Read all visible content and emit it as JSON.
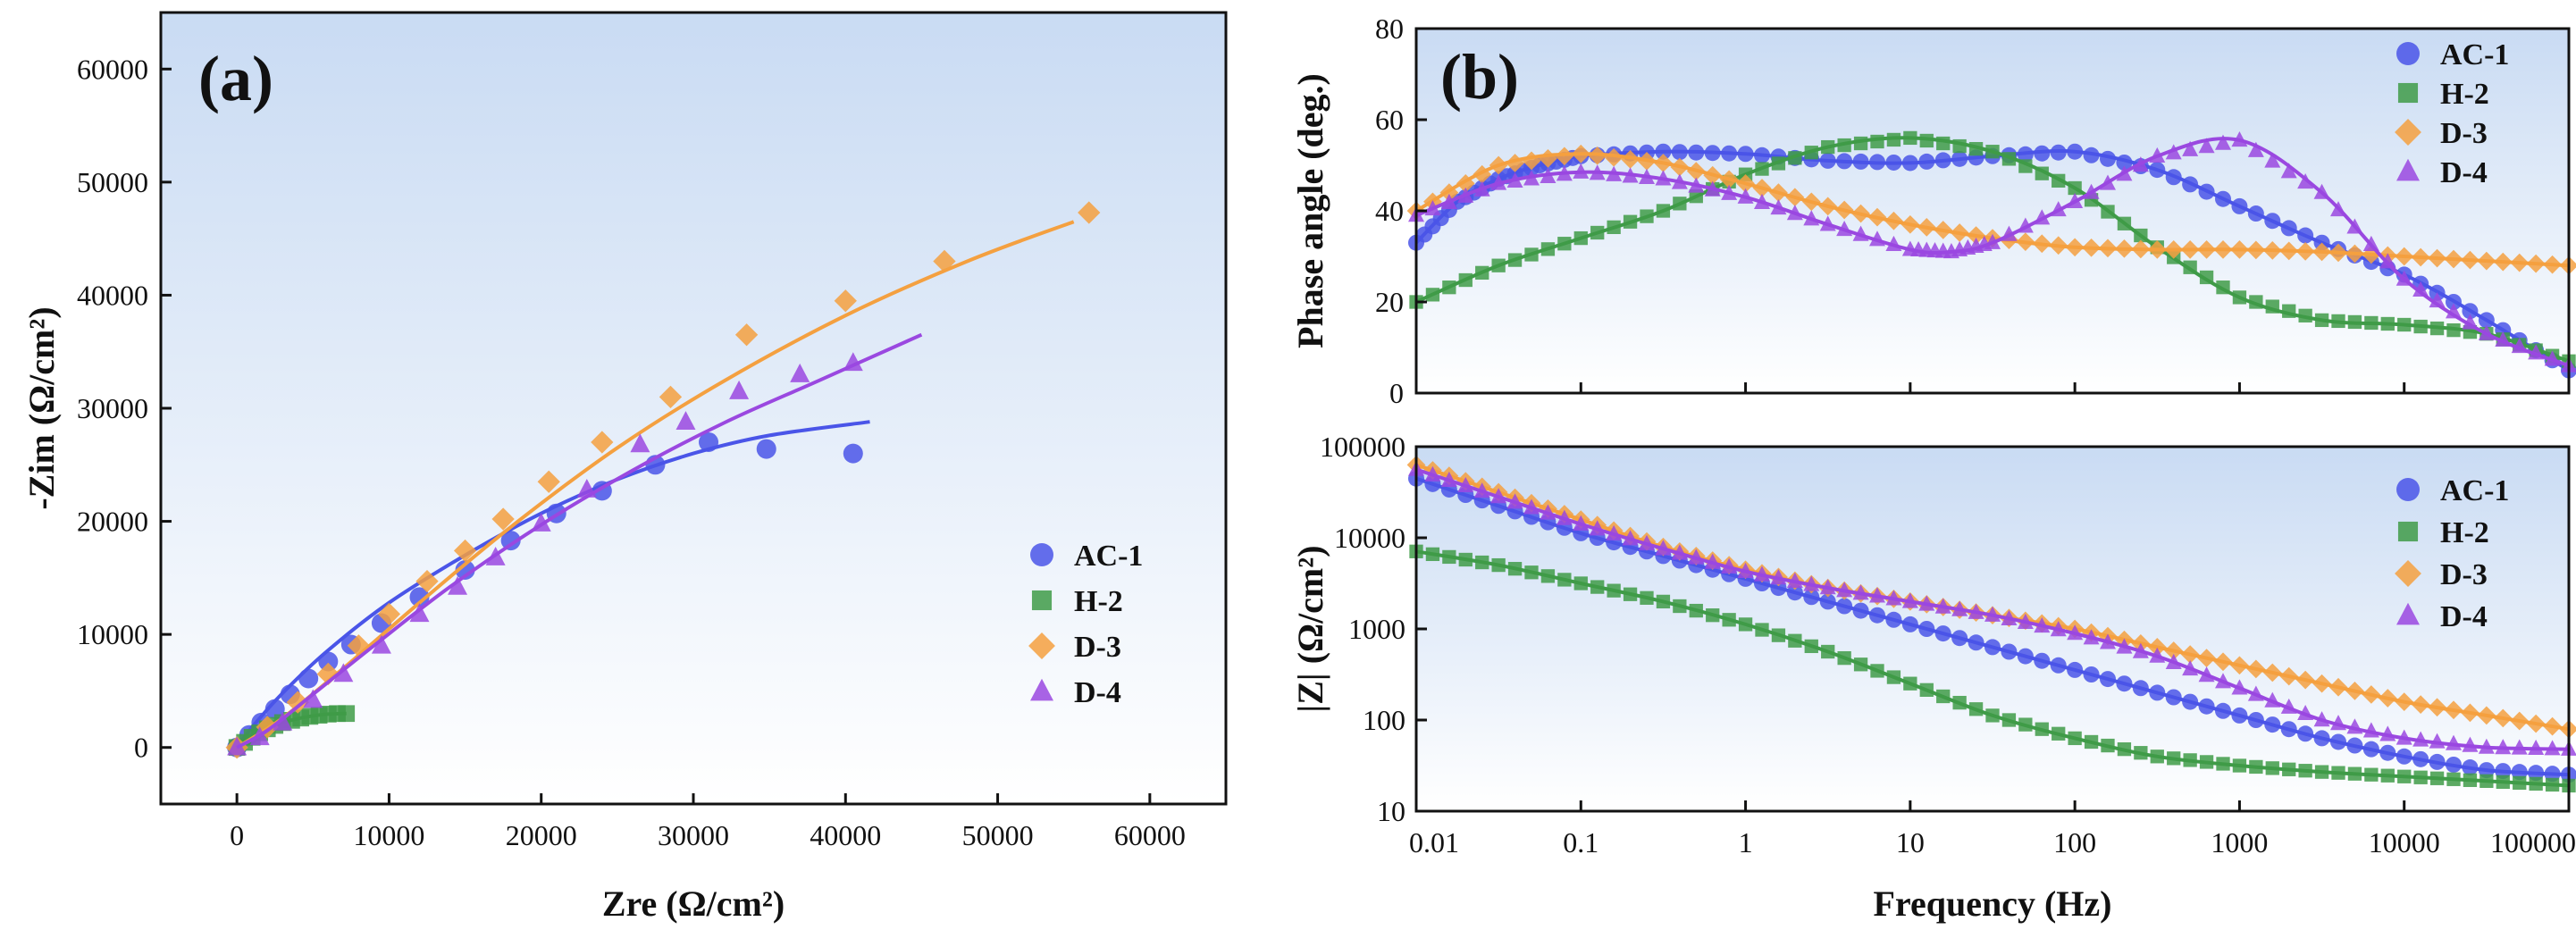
{
  "chart_data": [
    {
      "type": "scatter",
      "panel_label": "(a)",
      "title": "",
      "xlabel": "Zre (Ω/cm²)",
      "ylabel": "-Zim (Ω/cm²)",
      "xlim": [
        -5000,
        65000
      ],
      "ylim": [
        -5000,
        65000
      ],
      "x_ticks": [
        "0",
        "10000",
        "20000",
        "30000",
        "40000",
        "50000",
        "60000"
      ],
      "y_ticks": [
        "0",
        "10000",
        "20000",
        "30000",
        "40000",
        "50000",
        "60000"
      ],
      "legend_position": "center-right",
      "series": [
        {
          "name": "AC-1",
          "color": "#4a55e8",
          "marker": "circle",
          "x": [
            0,
            800,
            1600,
            2500,
            3500,
            4700,
            6000,
            7500,
            9500,
            12000,
            15000,
            18000,
            21000,
            24000,
            27500,
            31000,
            34800,
            40500
          ],
          "y": [
            0,
            1100,
            2200,
            3400,
            4700,
            6100,
            7600,
            9100,
            11000,
            13300,
            15700,
            18300,
            20700,
            22700,
            25000,
            27000,
            26400,
            26000
          ],
          "fit_x": [
            0,
            1000,
            3000,
            6000,
            10000,
            15000,
            20000,
            25000,
            30000,
            35000,
            41600
          ],
          "fit_y": [
            0,
            1800,
            4800,
            8600,
            12800,
            17000,
            20700,
            23700,
            26000,
            27600,
            28800
          ]
        },
        {
          "name": "H-2",
          "color": "#3f9b48",
          "marker": "square",
          "x": [
            0,
            500,
            1000,
            1500,
            2000,
            2500,
            3000,
            3600,
            4200,
            4800,
            5400,
            6000,
            6600,
            7200
          ],
          "y": [
            0,
            450,
            900,
            1300,
            1650,
            1950,
            2200,
            2400,
            2600,
            2750,
            2850,
            2950,
            3000,
            3000
          ],
          "fit_x": [
            0,
            1000,
            2000,
            3000,
            4000,
            5000,
            6000,
            7200
          ],
          "fit_y": [
            0,
            900,
            1650,
            2200,
            2550,
            2800,
            2950,
            3000
          ]
        },
        {
          "name": "D-3",
          "color": "#f4a040",
          "marker": "diamond",
          "x": [
            0,
            2000,
            4000,
            6000,
            8000,
            10000,
            12500,
            15000,
            17500,
            20500,
            24000,
            28500,
            33500,
            40000,
            46500,
            56000
          ],
          "y": [
            0,
            1800,
            4000,
            6500,
            9000,
            11800,
            14700,
            17400,
            20200,
            23500,
            27000,
            31000,
            36500,
            39500,
            43000,
            47300
          ],
          "fit_x": [
            0,
            3000,
            7000,
            12000,
            18000,
            25000,
            32000,
            40000,
            48000,
            55000
          ],
          "fit_y": [
            0,
            2600,
            7000,
            12800,
            19500,
            26500,
            32400,
            38200,
            43000,
            46500
          ]
        },
        {
          "name": "D-4",
          "color": "#9a48e0",
          "marker": "triangle",
          "x": [
            0,
            1500,
            3000,
            5000,
            7000,
            9500,
            12000,
            14500,
            17000,
            20000,
            23000,
            26500,
            29500,
            33000,
            37000,
            40500
          ],
          "y": [
            0,
            900,
            2200,
            4200,
            6500,
            9000,
            11800,
            14200,
            16800,
            19800,
            22800,
            26800,
            28800,
            31500,
            33000,
            34000
          ],
          "fit_x": [
            0,
            2000,
            5000,
            9000,
            14000,
            20000,
            26000,
            32000,
            38000,
            45000
          ],
          "fit_y": [
            0,
            1500,
            4700,
            9000,
            14200,
            19700,
            24500,
            28700,
            32300,
            36500
          ]
        }
      ]
    },
    {
      "type": "scatter",
      "panel_label": "(b)",
      "title": "",
      "xlabel": "Frequency (Hz)",
      "ylabel": "Phase angle (deg.)",
      "x_scale": "log",
      "xlim": [
        0.01,
        100000
      ],
      "ylim": [
        0,
        80
      ],
      "y_ticks": [
        "0",
        "20",
        "40",
        "60",
        "80"
      ],
      "legend_position": "top-right",
      "series": [
        {
          "name": "AC-1",
          "color": "#4a55e8",
          "marker": "circle",
          "log_f": [
            -2,
            -1.75,
            -1.5,
            -1.25,
            -1,
            -0.5,
            0,
            0.5,
            1,
            1.5,
            2,
            2.5,
            3,
            3.5,
            4,
            4.5,
            5
          ],
          "y": [
            33,
            42,
            47,
            50,
            52,
            53,
            52.5,
            51,
            50.5,
            52,
            53,
            49,
            41,
            33,
            26,
            16,
            5
          ]
        },
        {
          "name": "H-2",
          "color": "#3f9b48",
          "marker": "square",
          "log_f": [
            -2,
            -1.5,
            -1,
            -0.5,
            0,
            0.5,
            1,
            1.5,
            2,
            2.5,
            3,
            3.5,
            4,
            4.5,
            5
          ],
          "y": [
            20,
            28,
            34,
            40,
            48,
            54,
            56,
            53,
            45,
            32,
            21,
            16,
            15,
            13,
            7
          ]
        },
        {
          "name": "D-3",
          "color": "#f4a040",
          "marker": "diamond",
          "log_f": [
            -2,
            -1.5,
            -1,
            -0.5,
            0,
            0.5,
            1,
            1.5,
            2,
            2.5,
            3,
            3.5,
            4,
            4.5,
            5
          ],
          "y": [
            40,
            50,
            52.5,
            50.5,
            46,
            41,
            37,
            34,
            32,
            31.5,
            31.5,
            31,
            30,
            29,
            28
          ]
        },
        {
          "name": "D-4",
          "color": "#9a48e0",
          "marker": "triangle",
          "log_f": [
            -2,
            -1.5,
            -1,
            -0.5,
            0,
            0.5,
            1,
            1.25,
            1.5,
            2,
            2.5,
            3,
            3.5,
            4,
            4.5,
            5
          ],
          "y": [
            39,
            46,
            48.5,
            47,
            43,
            37,
            31.5,
            31,
            33,
            42,
            52,
            55.5,
            44,
            25,
            13,
            6
          ]
        }
      ]
    },
    {
      "type": "scatter",
      "panel_label": "",
      "title": "",
      "xlabel": "Frequency (Hz)",
      "ylabel": "|Z| (Ω/cm²)",
      "x_scale": "log",
      "y_scale": "log",
      "xlim": [
        0.01,
        100000
      ],
      "ylim": [
        10,
        100000
      ],
      "x_ticks": [
        "0.01",
        "0.1",
        "1",
        "10",
        "100",
        "1000",
        "10000",
        "100000"
      ],
      "y_ticks": [
        "10",
        "100",
        "1000",
        "10000",
        "100000"
      ],
      "legend_position": "top-right",
      "series": [
        {
          "name": "AC-1",
          "color": "#4a55e8",
          "marker": "circle",
          "log_f": [
            -2,
            -1.5,
            -1,
            -0.5,
            0,
            0.5,
            1,
            1.5,
            2,
            2.5,
            3,
            3.5,
            4,
            4.5,
            5
          ],
          "log_z": [
            4.65,
            4.35,
            4.05,
            3.8,
            3.55,
            3.3,
            3.05,
            2.8,
            2.55,
            2.3,
            2.05,
            1.8,
            1.6,
            1.45,
            1.4
          ]
        },
        {
          "name": "H-2",
          "color": "#3f9b48",
          "marker": "square",
          "log_f": [
            -2,
            -1.5,
            -1,
            -0.5,
            0,
            0.5,
            1,
            1.5,
            2,
            2.5,
            3,
            3.5,
            4,
            4.5,
            5
          ],
          "log_z": [
            3.85,
            3.7,
            3.5,
            3.3,
            3.05,
            2.75,
            2.4,
            2.05,
            1.8,
            1.6,
            1.5,
            1.43,
            1.38,
            1.33,
            1.28
          ]
        },
        {
          "name": "D-3",
          "color": "#f4a040",
          "marker": "diamond",
          "log_f": [
            -2,
            -1.5,
            -1,
            -0.5,
            0,
            0.5,
            1,
            1.5,
            2,
            2.5,
            3,
            3.5,
            4,
            4.5,
            5
          ],
          "log_z": [
            4.8,
            4.5,
            4.2,
            3.9,
            3.65,
            3.45,
            3.3,
            3.15,
            3.0,
            2.8,
            2.6,
            2.4,
            2.2,
            2.05,
            1.9
          ]
        },
        {
          "name": "D-4",
          "color": "#9a48e0",
          "marker": "triangle",
          "log_f": [
            -2,
            -1.5,
            -1,
            -0.5,
            0,
            0.5,
            1,
            1.5,
            2,
            2.5,
            3,
            3.5,
            4,
            4.5,
            5
          ],
          "log_z": [
            4.75,
            4.45,
            4.15,
            3.88,
            3.63,
            3.45,
            3.3,
            3.15,
            2.95,
            2.7,
            2.35,
            2.0,
            1.8,
            1.7,
            1.68
          ]
        }
      ]
    }
  ]
}
